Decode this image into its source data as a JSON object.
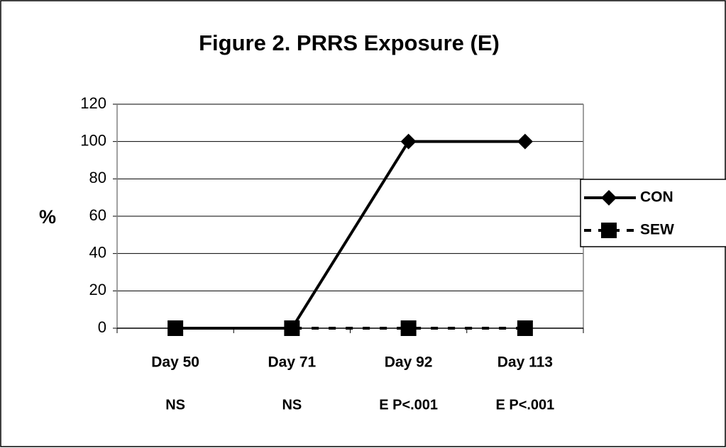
{
  "chart_data": {
    "type": "line",
    "title": "Figure 2.  PRRS Exposure (E)",
    "y_label": "%",
    "categories": [
      "Day 50",
      "Day 71",
      "Day 92",
      "Day 113"
    ],
    "category_notes": [
      "NS",
      "NS",
      "E P<.001",
      "E P<.001"
    ],
    "series": [
      {
        "name": "CON",
        "color": "#000000",
        "dash": "solid",
        "marker": "diamond",
        "values": [
          0,
          0,
          100,
          100
        ]
      },
      {
        "name": "SEW",
        "color": "#000000",
        "dash": "dashed",
        "marker": "square",
        "values": [
          0,
          0,
          0,
          0
        ]
      }
    ],
    "ylim": [
      0,
      120
    ],
    "yticks": [
      0,
      20,
      40,
      60,
      80,
      100,
      120
    ],
    "grid": true,
    "legend": "right"
  }
}
